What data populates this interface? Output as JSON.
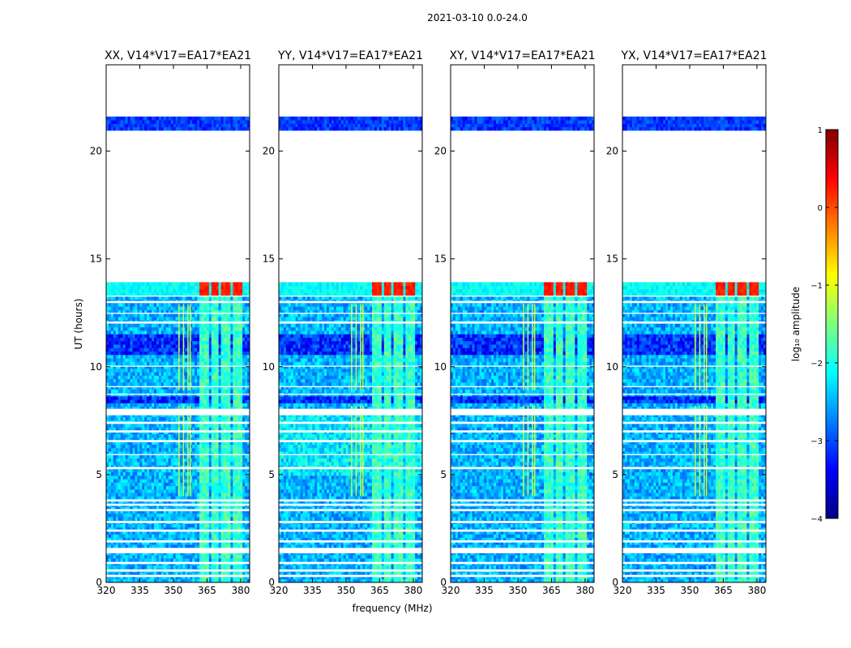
{
  "figure_title": "2021-03-10 0.0-24.0",
  "chart_data": {
    "type": "heatmap",
    "title": "2021-03-10 0.0-24.0",
    "xlabel": "frequency (MHz)",
    "ylabel": "UT (hours)",
    "xlim": [
      320,
      384
    ],
    "ylim": [
      0,
      24
    ],
    "xticks": [
      320,
      335,
      350,
      365,
      380
    ],
    "yticks": [
      0,
      5,
      10,
      15,
      20
    ],
    "panels": [
      {
        "title": "XX, V14*V17=EA17*EA21",
        "rfi_channels_mhz": [
          352.5,
          354.5,
          356.5,
          357.5
        ],
        "bright_bands_mhz": [
          [
            361.5,
            365.5
          ],
          [
            366.5,
            370.5
          ],
          [
            371.5,
            375.5
          ],
          [
            376.5,
            380.5
          ]
        ]
      },
      {
        "title": "YY, V14*V17=EA17*EA21",
        "rfi_channels_mhz": [
          352.5,
          354.5,
          356.5,
          357.5
        ],
        "bright_bands_mhz": [
          [
            361.5,
            365.5
          ],
          [
            366.5,
            370.5
          ],
          [
            371.5,
            375.5
          ],
          [
            376.5,
            380.5
          ]
        ]
      },
      {
        "title": "XY, V14*V17=EA17*EA21",
        "rfi_channels_mhz": [
          352.5,
          354.5,
          356.5,
          357.5
        ],
        "bright_bands_mhz": [
          [
            361.5,
            365.5
          ],
          [
            366.5,
            370.5
          ],
          [
            371.5,
            375.5
          ],
          [
            376.5,
            380.5
          ]
        ]
      },
      {
        "title": "YX, V14*V17=EA17*EA21",
        "rfi_channels_mhz": [
          352.5,
          354.5,
          356.5,
          357.5
        ],
        "bright_bands_mhz": [
          [
            361.5,
            365.5
          ],
          [
            366.5,
            370.5
          ],
          [
            371.5,
            375.5
          ],
          [
            376.5,
            380.5
          ]
        ]
      }
    ],
    "data_time_ranges_hours": [
      [
        0.0,
        13.9
      ],
      [
        20.95,
        21.6
      ]
    ],
    "flagged_gaps_hours": [
      [
        0.25,
        0.35
      ],
      [
        0.5,
        0.6
      ],
      [
        0.85,
        0.95
      ],
      [
        1.35,
        1.6
      ],
      [
        1.85,
        1.95
      ],
      [
        2.35,
        2.45
      ],
      [
        2.75,
        2.85
      ],
      [
        3.3,
        3.4
      ],
      [
        3.55,
        3.65
      ],
      [
        3.75,
        3.85
      ],
      [
        5.25,
        5.35
      ],
      [
        5.9,
        5.95
      ],
      [
        6.5,
        6.6
      ],
      [
        6.95,
        7.05
      ],
      [
        7.35,
        7.45
      ],
      [
        7.75,
        8.05
      ],
      [
        8.7,
        8.75
      ],
      [
        9.05,
        9.1
      ],
      [
        10.0,
        10.05
      ],
      [
        12.0,
        12.1
      ],
      [
        12.45,
        12.5
      ],
      [
        12.95,
        13.05
      ],
      [
        13.25,
        13.3
      ]
    ],
    "dense_rfi_times_hours": [
      [
        8.3,
        8.6
      ],
      [
        10.5,
        11.6
      ]
    ],
    "strong_signal_window_hours": [
      13.3,
      13.9
    ],
    "colorbar": {
      "label": "log₁₀ amplitude",
      "range": [
        -4,
        1
      ],
      "ticks": [
        1,
        0,
        -1,
        -2,
        -3,
        -4
      ],
      "tick_labels": [
        "1",
        "0",
        "−1",
        "−2",
        "−3",
        "−4"
      ],
      "colormap": "jet",
      "colors": [
        "#00007f",
        "#0000ff",
        "#007fff",
        "#00ffff",
        "#7fff7f",
        "#ffff00",
        "#ff7f00",
        "#ff0000",
        "#7f0000"
      ]
    }
  }
}
